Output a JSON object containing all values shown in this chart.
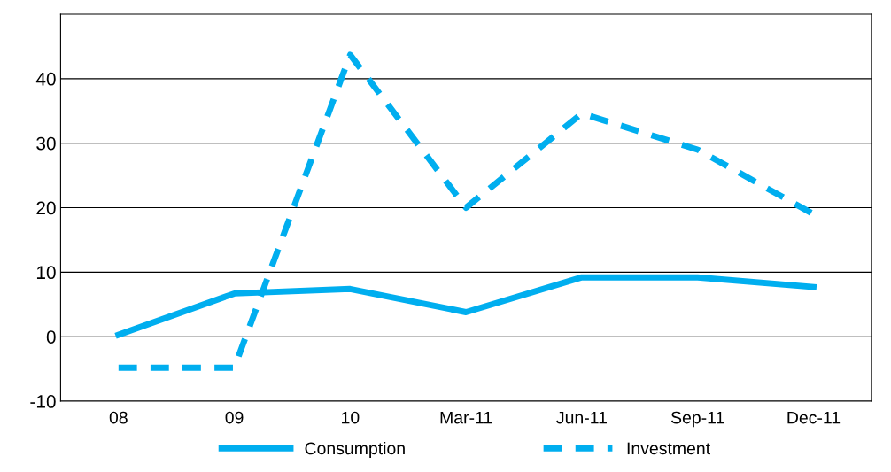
{
  "chart_data": {
    "type": "line",
    "categories": [
      "08",
      "09",
      "10",
      "Mar-11",
      "Jun-11",
      "Sep-11",
      "Dec-11"
    ],
    "series": [
      {
        "name": "Consumption",
        "color": "#00aeef",
        "line_style": "solid",
        "values": [
          0.3,
          6.7,
          7.4,
          3.8,
          9.2,
          9.2,
          7.7
        ]
      },
      {
        "name": "Investment",
        "color": "#00aeef",
        "line_style": "dashed",
        "values": [
          -4.8,
          -4.8,
          43.7,
          20,
          34.6,
          29,
          19
        ]
      }
    ],
    "ylim": [
      -10,
      50
    ],
    "yticks": [
      -10,
      0,
      10,
      20,
      30,
      40
    ],
    "grid": "y",
    "legend": "bottom",
    "marker": "none"
  }
}
